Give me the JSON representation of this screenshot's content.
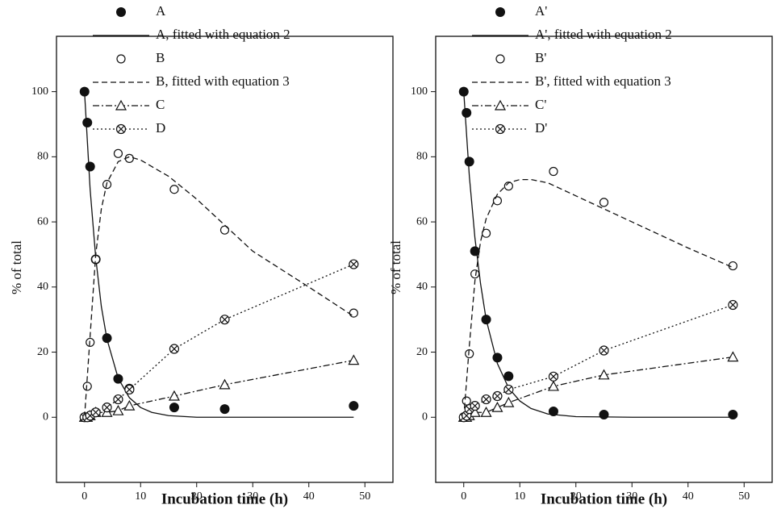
{
  "chart_data": [
    {
      "type": "line",
      "x_label": "Incubation time (h)",
      "y_label": "% of total",
      "xlim": [
        -5,
        55
      ],
      "ylim": [
        -20,
        117
      ],
      "xticks": [
        0,
        10,
        20,
        30,
        40,
        50
      ],
      "yticks": [
        0,
        20,
        40,
        60,
        80,
        100
      ],
      "series": [
        {
          "name": "A",
          "color": "#111111",
          "marker": "filled-circle",
          "line": "none",
          "x": [
            0,
            0.5,
            1,
            2,
            4,
            6,
            8,
            16,
            25,
            48
          ],
          "values": [
            100,
            90.5,
            77,
            48.5,
            24.3,
            11.8,
            8.8,
            3,
            2.5,
            3.5
          ]
        },
        {
          "name": "A, fitted with equation 2",
          "color": "#111111",
          "marker": "none",
          "line": "solid",
          "x": [
            0,
            1,
            2,
            3,
            4,
            6,
            8,
            10,
            12,
            15,
            20,
            30,
            40,
            48
          ],
          "values": [
            100,
            70,
            49,
            34,
            24,
            12,
            6,
            3,
            1.5,
            0.5,
            0,
            0,
            0,
            0
          ]
        },
        {
          "name": "B",
          "color": "#111111",
          "marker": "open-circle",
          "line": "none",
          "x": [
            0,
            0.5,
            1,
            2,
            4,
            6,
            8,
            16,
            25,
            48
          ],
          "values": [
            0,
            9.5,
            23,
            48.5,
            71.5,
            81,
            79.5,
            70,
            57.5,
            32
          ]
        },
        {
          "name": "B, fitted with equation 3",
          "color": "#111111",
          "marker": "none",
          "line": "dashed",
          "x": [
            0,
            1,
            2,
            3,
            4,
            6,
            8,
            10,
            15,
            20,
            25,
            30,
            40,
            48
          ],
          "values": [
            0,
            25,
            50,
            64,
            72,
            78.5,
            80,
            79,
            74,
            67,
            59,
            51,
            40,
            31
          ]
        },
        {
          "name": "C",
          "color": "#111111",
          "marker": "triangle",
          "line": "dashdot",
          "x": [
            0,
            0.5,
            1,
            2,
            4,
            6,
            8,
            16,
            25,
            48
          ],
          "values": [
            0,
            0,
            0.5,
            1.5,
            1.5,
            2,
            3.5,
            6.5,
            10,
            17.5
          ]
        },
        {
          "name": "D",
          "color": "#111111",
          "marker": "crossed-circle",
          "line": "dotted",
          "x": [
            0,
            0.5,
            1,
            2,
            4,
            6,
            8,
            16,
            25,
            48
          ],
          "values": [
            0,
            0,
            0.5,
            1.5,
            3,
            5.5,
            8.5,
            21,
            30,
            47
          ]
        }
      ]
    },
    {
      "type": "line",
      "x_label": "Incubation time (h)",
      "y_label": "% of total",
      "xlim": [
        -5,
        55
      ],
      "ylim": [
        -20,
        117
      ],
      "xticks": [
        0,
        10,
        20,
        30,
        40,
        50
      ],
      "yticks": [
        0,
        20,
        40,
        60,
        80,
        100
      ],
      "series": [
        {
          "name": "A'",
          "color": "#111111",
          "marker": "filled-circle",
          "line": "none",
          "x": [
            0,
            0.5,
            1,
            2,
            4,
            6,
            8,
            16,
            25,
            48
          ],
          "values": [
            100,
            93.5,
            78.5,
            51,
            30,
            18.3,
            12.6,
            1.8,
            0.8,
            0.8
          ]
        },
        {
          "name": "A', fitted with equation 2",
          "color": "#111111",
          "marker": "none",
          "line": "solid",
          "x": [
            0,
            1,
            2,
            3,
            4,
            6,
            8,
            10,
            12,
            15,
            20,
            30,
            48
          ],
          "values": [
            100,
            74,
            55,
            41,
            30,
            16.5,
            9,
            5,
            2.7,
            1,
            0.2,
            0,
            0
          ]
        },
        {
          "name": "B'",
          "color": "#111111",
          "marker": "open-circle",
          "line": "none",
          "x": [
            0.5,
            1,
            2,
            4,
            6,
            8,
            16,
            25,
            48
          ],
          "values": [
            5,
            19.5,
            44,
            56.5,
            66.5,
            71,
            75.5,
            66,
            46.5
          ]
        },
        {
          "name": "B', fitted with equation 3",
          "color": "#111111",
          "marker": "none",
          "line": "dashed",
          "x": [
            0,
            1,
            2,
            3,
            4,
            6,
            8,
            10,
            12,
            15,
            20,
            25,
            30,
            40,
            48
          ],
          "values": [
            0,
            22,
            42,
            54,
            61,
            68.5,
            72,
            73,
            73,
            72,
            68,
            64,
            60,
            52,
            46
          ]
        },
        {
          "name": "C'",
          "color": "#111111",
          "marker": "triangle",
          "line": "dashdot",
          "x": [
            0,
            0.5,
            1,
            2,
            4,
            6,
            8,
            16,
            25,
            48
          ],
          "values": [
            0,
            0,
            0.5,
            1.5,
            1.5,
            3,
            4.5,
            9.5,
            13,
            18.5
          ]
        },
        {
          "name": "D'",
          "color": "#111111",
          "marker": "crossed-circle",
          "line": "dotted",
          "x": [
            0,
            0.5,
            1,
            2,
            4,
            6,
            8,
            16,
            25,
            48
          ],
          "values": [
            0,
            0.5,
            2.5,
            3.5,
            5.5,
            6.5,
            8.5,
            12.5,
            20.5,
            34.5
          ]
        }
      ]
    }
  ]
}
